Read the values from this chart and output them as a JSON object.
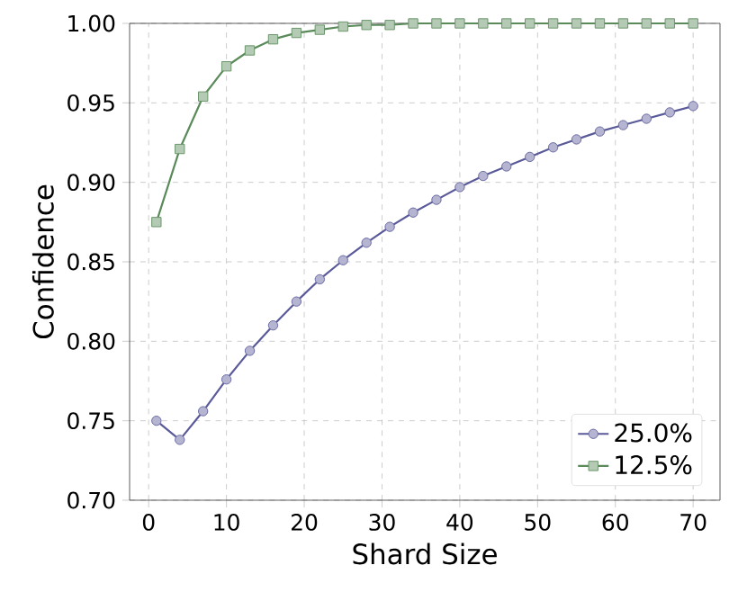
{
  "chart_data": {
    "type": "line",
    "xlabel": "Shard Size",
    "ylabel": "Confidence",
    "x": [
      1,
      4,
      7,
      10,
      13,
      16,
      19,
      22,
      25,
      28,
      31,
      34,
      37,
      40,
      43,
      46,
      49,
      52,
      55,
      58,
      61,
      64,
      67,
      70
    ],
    "series": [
      {
        "name": "25.0%",
        "color": "#5a5a9a",
        "marker": "circle",
        "values": [
          0.75,
          0.738,
          0.756,
          0.776,
          0.794,
          0.81,
          0.825,
          0.839,
          0.851,
          0.862,
          0.872,
          0.881,
          0.889,
          0.897,
          0.904,
          0.91,
          0.916,
          0.922,
          0.927,
          0.932,
          0.936,
          0.94,
          0.944,
          0.948
        ]
      },
      {
        "name": "12.5%",
        "color": "#5a8a5a",
        "marker": "square",
        "values": [
          0.875,
          0.921,
          0.954,
          0.973,
          0.983,
          0.99,
          0.994,
          0.996,
          0.998,
          0.999,
          0.999,
          1.0,
          1.0,
          1.0,
          1.0,
          1.0,
          1.0,
          1.0,
          1.0,
          1.0,
          1.0,
          1.0,
          1.0,
          1.0
        ]
      }
    ],
    "xlim": [
      -2.45,
      73.45
    ],
    "ylim": [
      0.7,
      1.0
    ],
    "xticks": [
      0,
      10,
      20,
      30,
      40,
      50,
      60,
      70
    ],
    "yticks": [
      {
        "value": 0.7,
        "label": "0.70"
      },
      {
        "value": 0.75,
        "label": "0.75"
      },
      {
        "value": 0.8,
        "label": "0.80"
      },
      {
        "value": 0.85,
        "label": "0.85"
      },
      {
        "value": 0.9,
        "label": "0.90"
      },
      {
        "value": 0.95,
        "label": "0.95"
      },
      {
        "value": 1.0,
        "label": "1.00"
      }
    ],
    "grid": true,
    "legend": "bottom right",
    "line_style": "solid"
  }
}
